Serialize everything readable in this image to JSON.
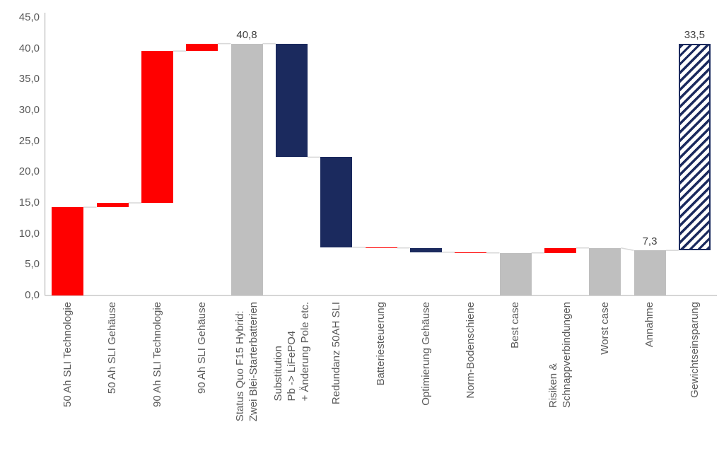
{
  "chart_data": {
    "type": "bar",
    "subtype": "waterfall",
    "title": "",
    "xlabel": "",
    "ylabel": "",
    "grid": false,
    "legend": false,
    "y_axis": {
      "min": 0,
      "max": 45,
      "step": 5,
      "tick_labels": [
        "0,0",
        "5,0",
        "10,0",
        "15,0",
        "20,0",
        "25,0",
        "30,0",
        "35,0",
        "40,0",
        "45,0"
      ]
    },
    "categories": [
      "50 Ah SLI Technologie",
      "50 Ah SLI Gehäuse",
      "90 Ah SLI Technologie",
      "90 Ah SLI Gehäuse",
      "Status Quo F15 Hybrid:\nZwei Blei-Starterbatterien",
      "Substitution\nPb -> LiFePO4\n+ Änderung Pole etc.",
      "Redundanz 50AH SLI",
      "Batteriesteuerung",
      "Optimierung Gehäuse",
      "Norm-Bodenschiene",
      "Best case",
      "Risiken &\nSchnappverbindungen",
      "Worst case",
      "Annahme",
      "Gewichtseinsparung"
    ],
    "bars": [
      {
        "label": "50 Ah SLI Technologie",
        "kind": "flow",
        "from": 0,
        "to": 14.3,
        "color": "red"
      },
      {
        "label": "50 Ah SLI Gehäuse",
        "kind": "flow",
        "from": 14.3,
        "to": 15.0,
        "color": "red"
      },
      {
        "label": "90 Ah SLI Technologie",
        "kind": "flow",
        "from": 15.0,
        "to": 39.6,
        "color": "red"
      },
      {
        "label": "90 Ah SLI Gehäuse",
        "kind": "flow",
        "from": 39.6,
        "to": 40.8,
        "color": "red"
      },
      {
        "label": "Status Quo F15 Hybrid:\nZwei Blei-Starterbatterien",
        "kind": "total",
        "from": 0,
        "to": 40.8,
        "color": "gray",
        "value_label": "40,8"
      },
      {
        "label": "Substitution\nPb -> LiFePO4\n+ Änderung Pole etc.",
        "kind": "flow",
        "from": 40.8,
        "to": 22.4,
        "color": "navy"
      },
      {
        "label": "Redundanz 50AH SLI",
        "kind": "flow",
        "from": 22.4,
        "to": 7.8,
        "color": "navy"
      },
      {
        "label": "Batteriesteuerung",
        "kind": "flow",
        "from": 7.8,
        "to": 7.7,
        "color": "red"
      },
      {
        "label": "Optimierung Gehäuse",
        "kind": "flow",
        "from": 7.7,
        "to": 7.0,
        "color": "navy"
      },
      {
        "label": "Norm-Bodenschiene",
        "kind": "flow",
        "from": 7.0,
        "to": 6.9,
        "color": "red"
      },
      {
        "label": "Best case",
        "kind": "total",
        "from": 0,
        "to": 6.9,
        "color": "gray"
      },
      {
        "label": "Risiken &\nSchnappverbindungen",
        "kind": "flow",
        "from": 6.9,
        "to": 7.7,
        "color": "red"
      },
      {
        "label": "Worst case",
        "kind": "total",
        "from": 0,
        "to": 7.7,
        "color": "gray"
      },
      {
        "label": "Annahme",
        "kind": "total",
        "from": 0,
        "to": 7.3,
        "color": "gray",
        "value_label": "7,3"
      },
      {
        "label": "Gewichtseinsparung",
        "kind": "flow",
        "from": 7.3,
        "to": 40.8,
        "color": "hatched",
        "value_label": "33,5"
      }
    ],
    "colors": {
      "red": "#FF0000",
      "navy": "#1B2A5E",
      "gray": "#BFBFBF",
      "hatch_stripe": "#1B2A5E",
      "connector_line": "#D9D9D9",
      "axis_line": "#C9C9C9",
      "tick_text": "#595959",
      "value_text": "#404040"
    }
  }
}
